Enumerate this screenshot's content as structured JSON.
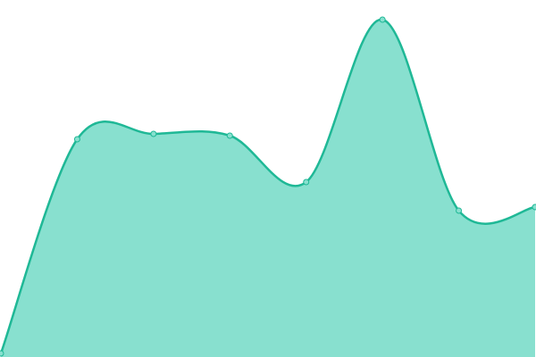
{
  "chart_data": {
    "type": "area",
    "categories": [
      null,
      null,
      null,
      null,
      null,
      null,
      null,
      null
    ],
    "values": [
      1,
      61,
      62.5,
      62,
      49,
      94.5,
      41,
      42
    ],
    "ylim": [
      0,
      100
    ],
    "line_color": "#1fb896",
    "fill_color": "#88e0cf",
    "smooth": true,
    "markers": true
  }
}
